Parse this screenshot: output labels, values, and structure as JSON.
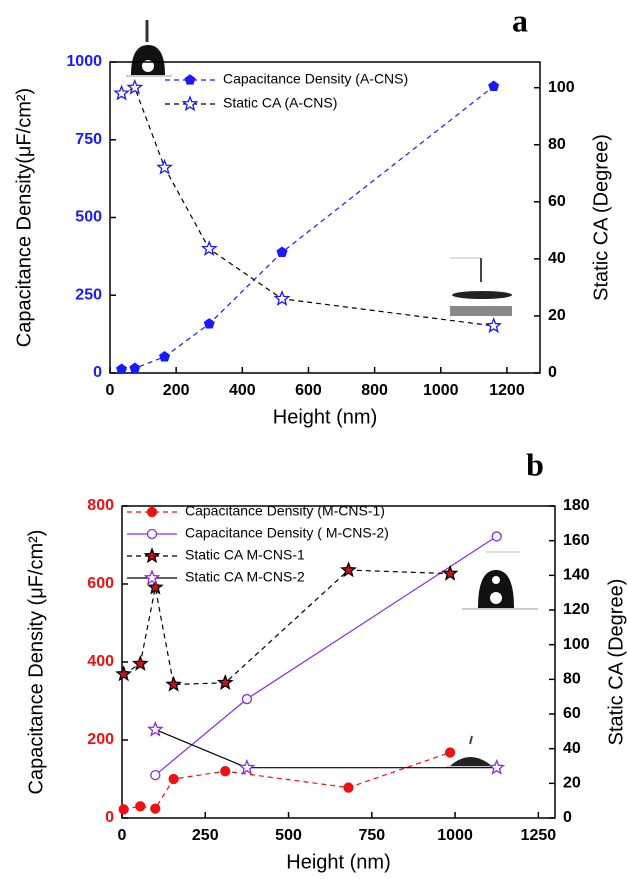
{
  "chart_data": [
    {
      "type": "line",
      "label": "a",
      "xlabel": "Height (nm)",
      "ylabel": "Capacitance Density(μF/cm²)",
      "y2label": "Static CA (Degree)",
      "xlim": [
        0,
        1300
      ],
      "xticks": [
        0,
        200,
        400,
        600,
        800,
        1000,
        1200
      ],
      "ylim": [
        0,
        1000
      ],
      "yticks": [
        0,
        250,
        500,
        750,
        1000
      ],
      "y2lim": [
        0,
        109
      ],
      "y2ticks": [
        0,
        20,
        40,
        60,
        80,
        100
      ],
      "y_color": "#1a1aff",
      "legend": "upper center",
      "grid": false,
      "series": [
        {
          "name": "Capacitance Density (A-CNS)",
          "color": "#1a1aff",
          "marker": "pentagon",
          "marker_color": "#1a1aff",
          "marker_fill": true,
          "linestyle": "dashed",
          "x": [
            35,
            75,
            165,
            300,
            520,
            1160
          ],
          "values": [
            12,
            15,
            52,
            158,
            388,
            922
          ]
        },
        {
          "name": "Static CA (A-CNS)",
          "color": "#000000",
          "marker": "star",
          "marker_color": "#1a1aff",
          "marker_fill": false,
          "linestyle": "dashed",
          "axis": "y2",
          "x": [
            35,
            75,
            165,
            300,
            520,
            1160
          ],
          "values": [
            98,
            100,
            72,
            43.5,
            26,
            16.5
          ]
        }
      ]
    },
    {
      "type": "line",
      "label": "b",
      "xlabel": "Height (nm)",
      "ylabel": "Capacitance Density (μF/cm²)",
      "y2label": "Static CA (Degree)",
      "xlim": [
        0,
        1300
      ],
      "xticks": [
        0,
        250,
        500,
        750,
        1000,
        1250
      ],
      "ylim": [
        0,
        800
      ],
      "yticks": [
        0,
        200,
        400,
        600,
        800
      ],
      "y2lim": [
        0,
        180
      ],
      "y2ticks": [
        0,
        20,
        40,
        60,
        80,
        100,
        120,
        140,
        160,
        180
      ],
      "y_color": "#ee1111",
      "legend": "upper left",
      "grid": false,
      "series": [
        {
          "name": "Capacitance Density (M-CNS-1)",
          "color": "#ee1111",
          "marker": "circle",
          "marker_color": "#ee1111",
          "marker_fill": true,
          "linestyle": "dashed",
          "x": [
            5,
            55,
            100,
            155,
            310,
            680,
            985
          ],
          "values": [
            22,
            30,
            24,
            100,
            120,
            78,
            168
          ]
        },
        {
          "name": "Capacitance Density ( M-CNS-2)",
          "color": "#8a2be2",
          "marker": "circle",
          "marker_color": "#8a2be2",
          "marker_fill": false,
          "linestyle": "solid",
          "x": [
            100,
            375,
            1125
          ],
          "values": [
            110,
            305,
            722
          ]
        },
        {
          "name": "Static  CA M-CNS-1",
          "color": "#000000",
          "marker": "star",
          "marker_color": "#000000",
          "marker_fill": "#cc1111",
          "linestyle": "dashed",
          "axis": "y2",
          "x": [
            5,
            55,
            100,
            155,
            310,
            680,
            985
          ],
          "values": [
            83,
            89,
            133,
            77,
            78,
            143,
            141
          ]
        },
        {
          "name": "Static CA M-CNS-2",
          "color": "#000000",
          "marker": "star",
          "marker_color": "#8a2be2",
          "marker_fill": false,
          "linestyle": "solid",
          "axis": "y2",
          "x": [
            100,
            375,
            1125
          ],
          "values": [
            51,
            29,
            29
          ]
        }
      ]
    }
  ]
}
